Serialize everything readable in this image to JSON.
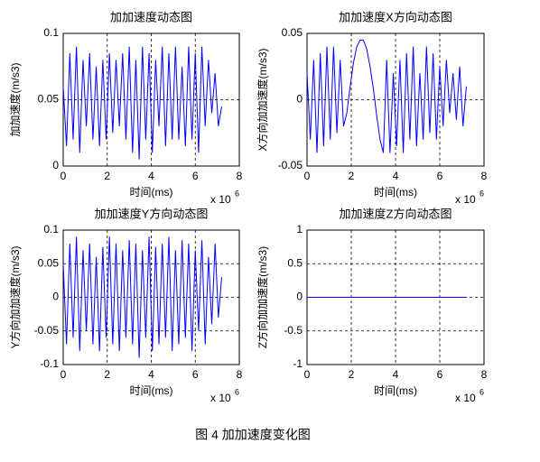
{
  "caption": "图 4 加加速度变化图",
  "chart_data": [
    {
      "type": "line",
      "title": "加加速度动态图",
      "xlabel": "时间(ms)",
      "ylabel": "加加速度(m/s3)",
      "x_exponent_label": {
        "base": "x 10",
        "exponent": "6"
      },
      "xlim": [
        0,
        8
      ],
      "xticks": [
        0,
        2,
        4,
        6,
        8
      ],
      "ylim": [
        0,
        0.1
      ],
      "yticks": [
        0,
        0.05,
        0.1
      ],
      "grid": true,
      "x": [
        0,
        0.15,
        0.3,
        0.45,
        0.6,
        0.75,
        0.9,
        1.05,
        1.2,
        1.35,
        1.5,
        1.65,
        1.8,
        1.95,
        2.1,
        2.25,
        2.4,
        2.55,
        2.7,
        2.85,
        3.0,
        3.15,
        3.3,
        3.45,
        3.6,
        3.75,
        3.9,
        4.05,
        4.2,
        4.35,
        4.5,
        4.65,
        4.8,
        4.95,
        5.1,
        5.25,
        5.4,
        5.55,
        5.7,
        5.85,
        6.0,
        6.15,
        6.3,
        6.45,
        6.6,
        6.75,
        6.9,
        7.05,
        7.2
      ],
      "series": [
        {
          "color": "#0000ff",
          "values": [
            0.06,
            0.015,
            0.085,
            0.02,
            0.09,
            0.01,
            0.08,
            0.03,
            0.085,
            0.02,
            0.075,
            0.015,
            0.08,
            0.02,
            0.085,
            0.025,
            0.08,
            0.03,
            0.085,
            0.02,
            0.09,
            0.01,
            0.08,
            0.005,
            0.09,
            0.02,
            0.085,
            0.01,
            0.08,
            0.03,
            0.09,
            0.015,
            0.085,
            0.02,
            0.09,
            0.02,
            0.075,
            0.015,
            0.09,
            0.02,
            0.085,
            0.01,
            0.09,
            0.03,
            0.08,
            0.04,
            0.07,
            0.03,
            0.045
          ]
        }
      ]
    },
    {
      "type": "line",
      "title": "加加速度X方向动态图",
      "xlabel": "时间(ms)",
      "ylabel": "X方向加加速度(m/s3)",
      "x_exponent_label": {
        "base": "x 10",
        "exponent": "6"
      },
      "xlim": [
        0,
        8
      ],
      "xticks": [
        0,
        2,
        4,
        6,
        8
      ],
      "ylim": [
        -0.05,
        0.05
      ],
      "yticks": [
        -0.05,
        0,
        0.05
      ],
      "grid": true,
      "x": [
        0,
        0.15,
        0.3,
        0.45,
        0.6,
        0.75,
        0.9,
        1.05,
        1.2,
        1.35,
        1.5,
        1.65,
        1.8,
        1.95,
        2.1,
        2.25,
        2.4,
        2.55,
        2.7,
        2.85,
        3.0,
        3.15,
        3.3,
        3.45,
        3.6,
        3.75,
        3.9,
        4.05,
        4.2,
        4.35,
        4.5,
        4.65,
        4.8,
        4.95,
        5.1,
        5.25,
        5.4,
        5.55,
        5.7,
        5.85,
        6.0,
        6.15,
        6.3,
        6.45,
        6.6,
        6.75,
        6.9,
        7.05,
        7.2
      ],
      "series": [
        {
          "color": "#0000ff",
          "values": [
            0.02,
            -0.03,
            0.03,
            -0.04,
            0.035,
            -0.035,
            0.04,
            -0.03,
            0.04,
            -0.025,
            0.03,
            -0.02,
            -0.01,
            0.01,
            0.028,
            0.04,
            0.045,
            0.045,
            0.038,
            0.025,
            0.008,
            -0.012,
            -0.03,
            -0.04,
            0.03,
            -0.04,
            0.02,
            -0.035,
            0.03,
            -0.04,
            0.035,
            -0.03,
            0.04,
            -0.035,
            0.02,
            -0.03,
            0.04,
            -0.025,
            0.035,
            -0.03,
            0.025,
            -0.02,
            0.03,
            -0.01,
            0.02,
            -0.015,
            0.025,
            -0.02,
            0.01
          ]
        }
      ]
    },
    {
      "type": "line",
      "title": "加加速度Y方向动态图",
      "xlabel": "时间(ms)",
      "ylabel": "Y方向加加速度(m/s3)",
      "x_exponent_label": {
        "base": "x 10",
        "exponent": "6"
      },
      "xlim": [
        0,
        8
      ],
      "xticks": [
        0,
        2,
        4,
        6,
        8
      ],
      "ylim": [
        -0.1,
        0.1
      ],
      "yticks": [
        -0.1,
        -0.05,
        0,
        0.05,
        0.1
      ],
      "grid": true,
      "x": [
        0,
        0.15,
        0.3,
        0.45,
        0.6,
        0.75,
        0.9,
        1.05,
        1.2,
        1.35,
        1.5,
        1.65,
        1.8,
        1.95,
        2.1,
        2.25,
        2.4,
        2.55,
        2.7,
        2.85,
        3.0,
        3.15,
        3.3,
        3.45,
        3.6,
        3.75,
        3.9,
        4.05,
        4.2,
        4.35,
        4.5,
        4.65,
        4.8,
        4.95,
        5.1,
        5.25,
        5.4,
        5.55,
        5.7,
        5.85,
        6.0,
        6.15,
        6.3,
        6.45,
        6.6,
        6.75,
        6.9,
        7.05,
        7.2
      ],
      "series": [
        {
          "color": "#0000ff",
          "values": [
            0.05,
            -0.07,
            0.08,
            -0.06,
            0.09,
            -0.08,
            0.07,
            -0.05,
            0.08,
            -0.07,
            0.06,
            -0.08,
            0.075,
            -0.06,
            0.09,
            -0.07,
            0.08,
            -0.08,
            0.07,
            -0.06,
            0.085,
            -0.07,
            0.08,
            -0.09,
            0.07,
            -0.06,
            0.09,
            -0.08,
            0.075,
            -0.07,
            0.08,
            -0.06,
            0.09,
            -0.08,
            0.07,
            -0.07,
            0.085,
            -0.06,
            0.08,
            -0.08,
            0.07,
            -0.05,
            0.085,
            -0.07,
            0.06,
            -0.04,
            0.08,
            -0.03,
            0.03
          ]
        }
      ]
    },
    {
      "type": "line",
      "title": "加加速度Z方向动态图",
      "xlabel": "时间(ms)",
      "ylabel": "Z方向加加速度(m/s3)",
      "x_exponent_label": {
        "base": "x 10",
        "exponent": "6"
      },
      "xlim": [
        0,
        8
      ],
      "xticks": [
        0,
        2,
        4,
        6,
        8
      ],
      "ylim": [
        -1,
        1
      ],
      "yticks": [
        -1,
        -0.5,
        0,
        0.5,
        1
      ],
      "grid": true,
      "x": [
        0,
        7.2
      ],
      "series": [
        {
          "color": "#0000ff",
          "values": [
            0,
            0
          ]
        }
      ]
    }
  ]
}
